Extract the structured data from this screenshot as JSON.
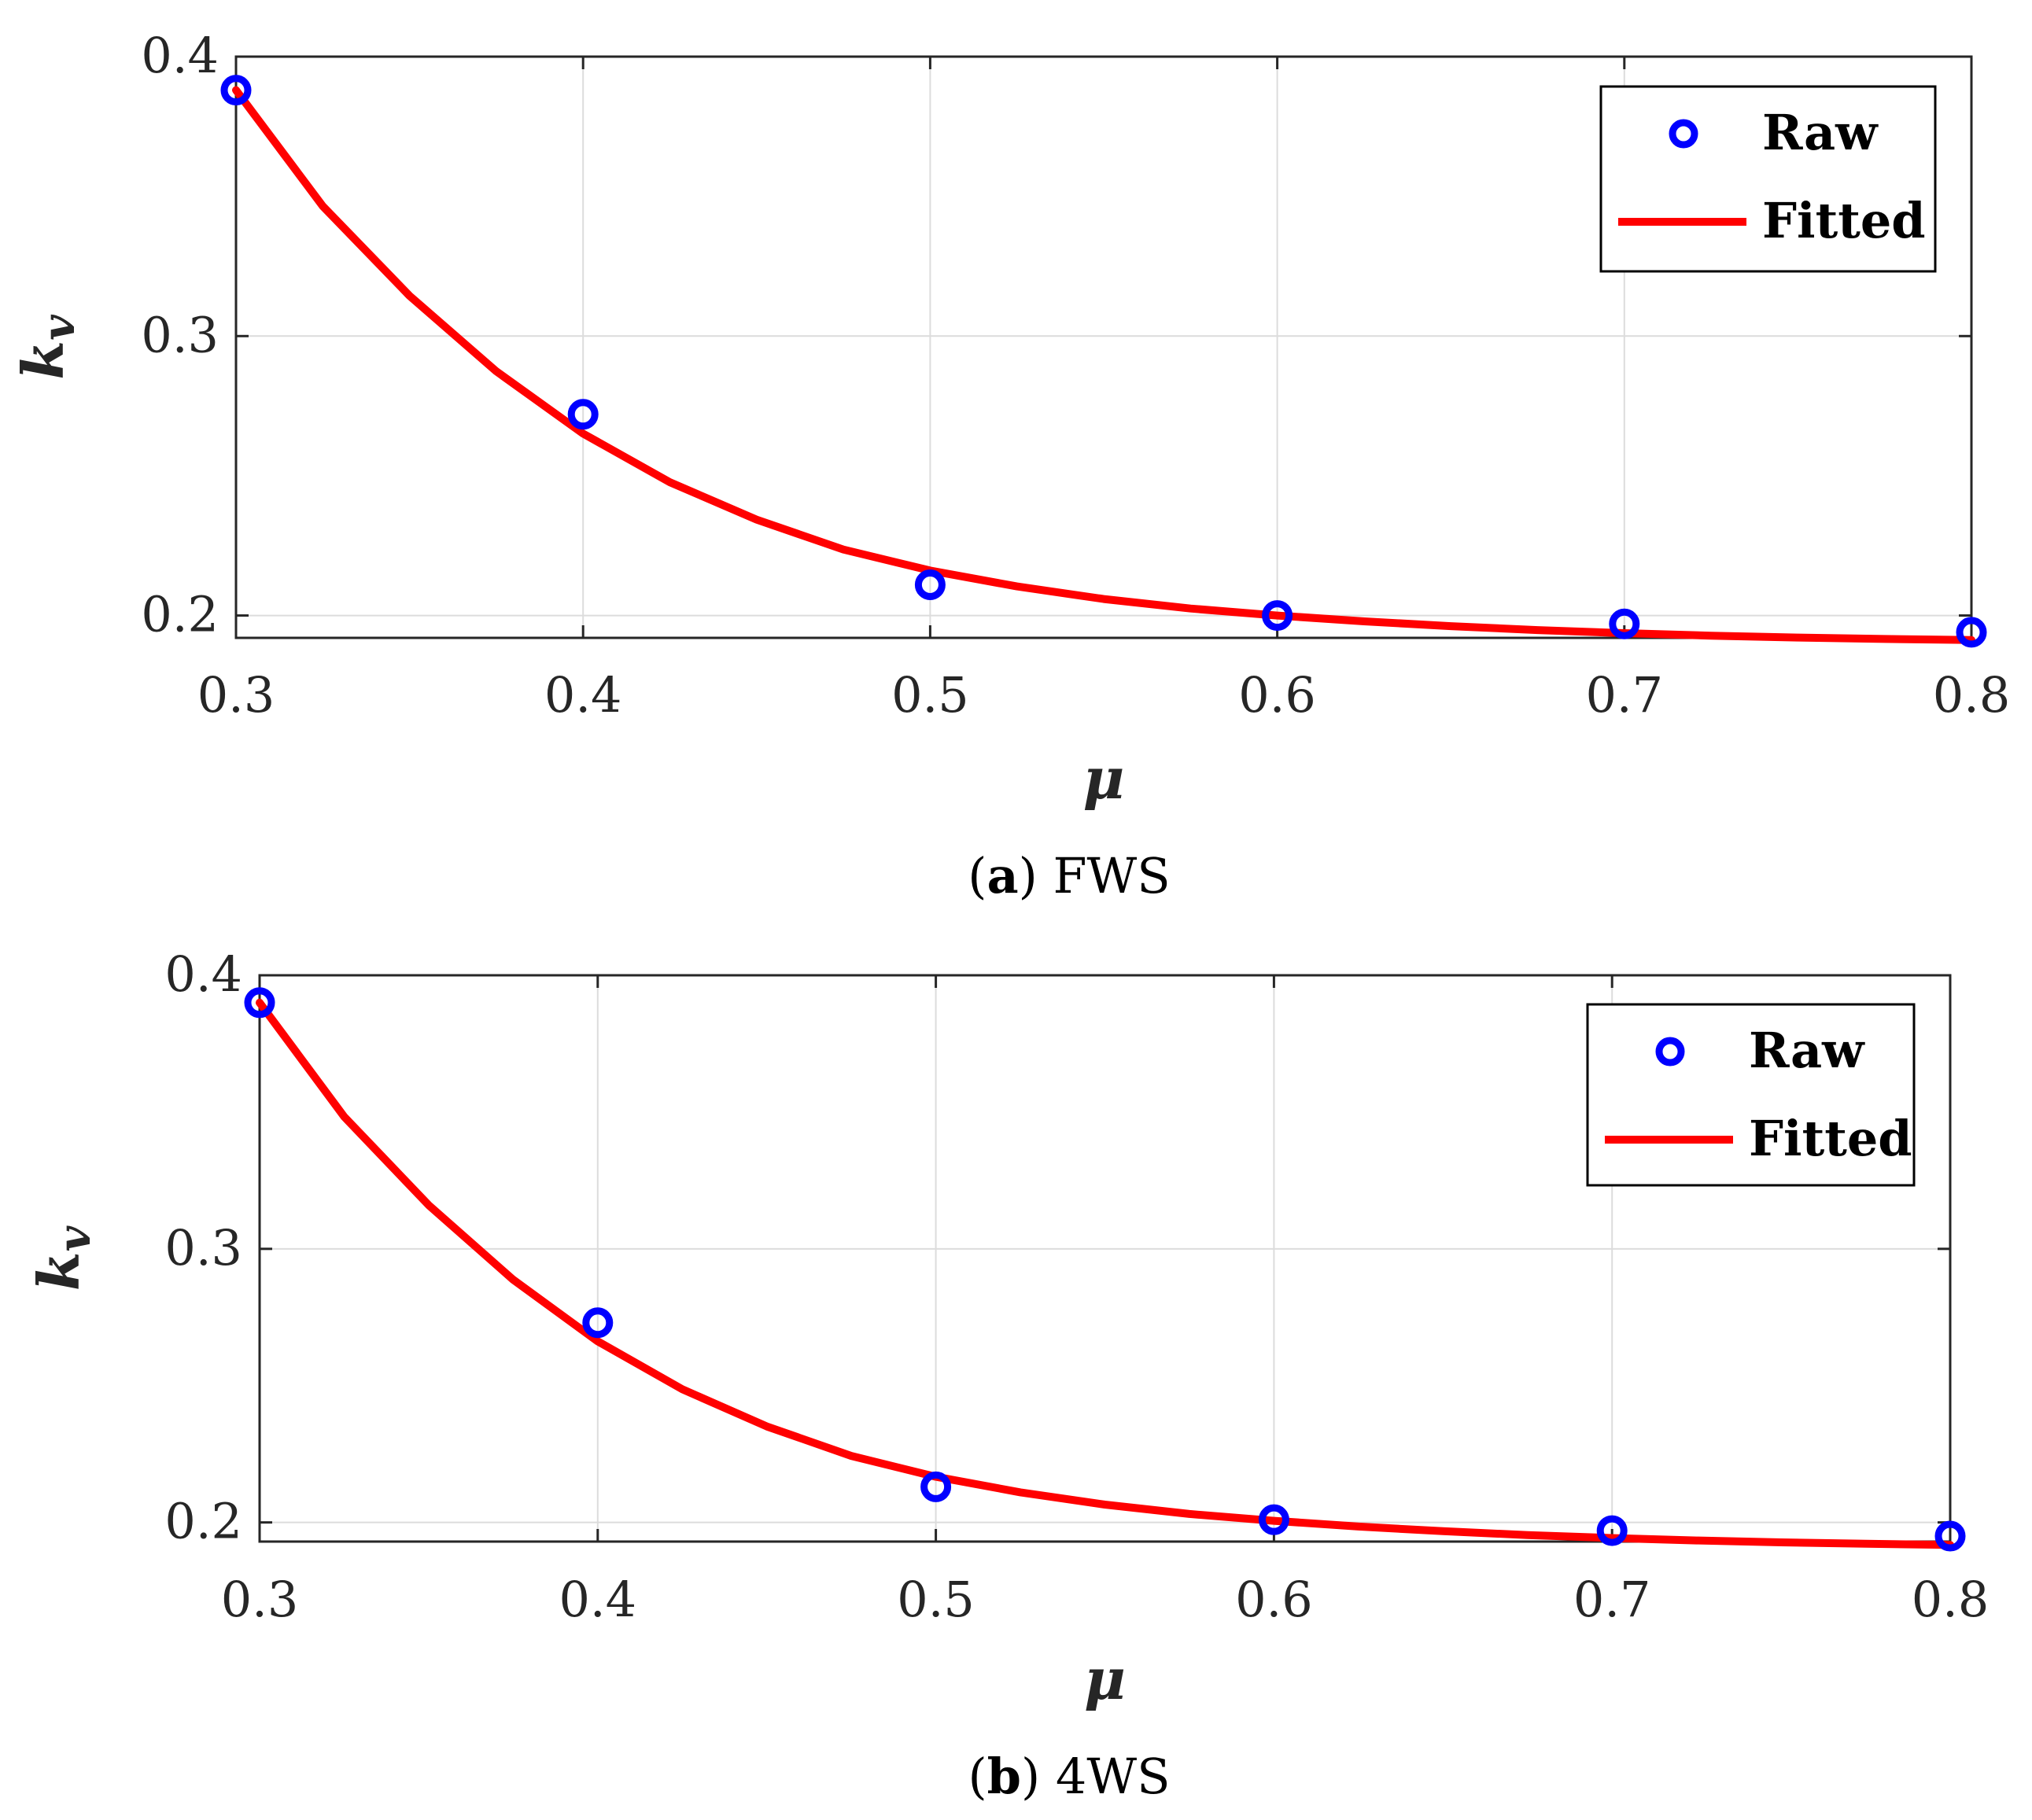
{
  "colors": {
    "raw": "#0000ff",
    "fitted": "#ff0000",
    "grid": "#dcdcdc",
    "axis": "#262626"
  },
  "chart_data": [
    {
      "type": "scatter",
      "title": "",
      "caption": {
        "letter": "a",
        "label": "FWS"
      },
      "xlabel": "μ",
      "ylabel": {
        "main": "k",
        "sub": "v"
      },
      "xlim": [
        0.3,
        0.8
      ],
      "ylim": [
        0.192,
        0.4
      ],
      "xticks": [
        "0.3",
        "0.4",
        "0.5",
        "0.6",
        "0.7",
        "0.8"
      ],
      "yticks": [
        "0.2",
        "0.3",
        "0.4"
      ],
      "grid": true,
      "legend": {
        "position": "top-right",
        "entries": [
          "Raw",
          "Fitted"
        ]
      },
      "series": [
        {
          "name": "Raw",
          "marker": "circle",
          "x": [
            0.3,
            0.4,
            0.5,
            0.6,
            0.7,
            0.8
          ],
          "y": [
            0.388,
            0.272,
            0.211,
            0.2,
            0.197,
            0.194
          ]
        },
        {
          "name": "Fitted",
          "style": "line",
          "x": [
            0.3,
            0.325,
            0.35,
            0.375,
            0.4,
            0.425,
            0.45,
            0.475,
            0.5,
            0.525,
            0.55,
            0.575,
            0.6,
            0.625,
            0.65,
            0.675,
            0.7,
            0.725,
            0.75,
            0.775,
            0.8
          ],
          "y": [
            0.388,
            0.3465,
            0.3144,
            0.2874,
            0.2651,
            0.2477,
            0.2343,
            0.2236,
            0.2161,
            0.2104,
            0.2059,
            0.2025,
            0.2,
            0.1979,
            0.1962,
            0.1948,
            0.1937,
            0.1928,
            0.1921,
            0.1916,
            0.1912
          ]
        }
      ]
    },
    {
      "type": "scatter",
      "title": "",
      "caption": {
        "letter": "b",
        "label": "4WS"
      },
      "xlabel": "μ",
      "ylabel": {
        "main": "k",
        "sub": "v"
      },
      "xlim": [
        0.3,
        0.8
      ],
      "ylim": [
        0.193,
        0.4
      ],
      "xticks": [
        "0.3",
        "0.4",
        "0.5",
        "0.6",
        "0.7",
        "0.8"
      ],
      "yticks": [
        "0.2",
        "0.3",
        "0.4"
      ],
      "grid": true,
      "legend": {
        "position": "top-right",
        "entries": [
          "Raw",
          "Fitted"
        ]
      },
      "series": [
        {
          "name": "Raw",
          "marker": "circle",
          "x": [
            0.3,
            0.4,
            0.5,
            0.6,
            0.7,
            0.8
          ],
          "y": [
            0.39,
            0.273,
            0.213,
            0.201,
            0.197,
            0.195
          ]
        },
        {
          "name": "Fitted",
          "style": "line",
          "x": [
            0.3,
            0.325,
            0.35,
            0.375,
            0.4,
            0.425,
            0.45,
            0.475,
            0.5,
            0.525,
            0.55,
            0.575,
            0.6,
            0.625,
            0.65,
            0.675,
            0.7,
            0.725,
            0.75,
            0.775,
            0.8
          ],
          "y": [
            0.39,
            0.3483,
            0.316,
            0.2887,
            0.2662,
            0.2487,
            0.2351,
            0.2243,
            0.2167,
            0.211,
            0.2065,
            0.2031,
            0.2006,
            0.1985,
            0.1968,
            0.1954,
            0.1943,
            0.1934,
            0.1927,
            0.1922,
            0.1918
          ]
        }
      ]
    }
  ]
}
